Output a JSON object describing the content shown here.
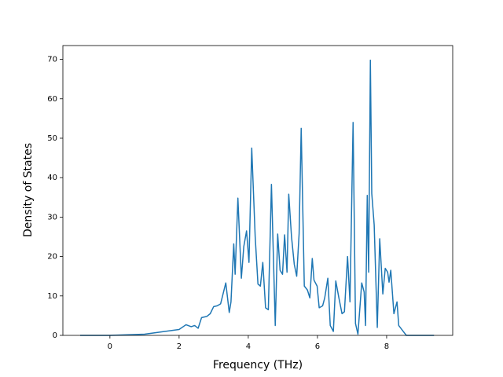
{
  "chart_data": {
    "type": "line",
    "x_label": "Frequency (THz)",
    "y_label": "Density of States",
    "color": "#1f77b4",
    "x": [
      -0.86,
      0,
      1.0,
      2.0,
      2.2,
      2.35,
      2.45,
      2.55,
      2.65,
      2.8,
      2.9,
      3.0,
      3.1,
      3.2,
      3.35,
      3.45,
      3.5,
      3.58,
      3.62,
      3.7,
      3.8,
      3.87,
      3.95,
      4.02,
      4.1,
      4.2,
      4.28,
      4.35,
      4.42,
      4.5,
      4.58,
      4.67,
      4.78,
      4.85,
      4.92,
      4.99,
      5.05,
      5.12,
      5.17,
      5.25,
      5.33,
      5.4,
      5.47,
      5.53,
      5.62,
      5.71,
      5.78,
      5.85,
      5.9,
      5.99,
      6.05,
      6.15,
      6.21,
      6.3,
      6.37,
      6.46,
      6.53,
      6.62,
      6.71,
      6.78,
      6.87,
      6.94,
      7.03,
      7.1,
      7.17,
      7.28,
      7.35,
      7.39,
      7.44,
      7.48,
      7.53,
      7.57,
      7.64,
      7.73,
      7.8,
      7.89,
      7.96,
      8.03,
      8.07,
      8.12,
      8.21,
      8.3,
      8.35,
      8.48,
      8.57,
      9.37
    ],
    "values": [
      0,
      0,
      0.3,
      1.5,
      2.7,
      2.2,
      2.5,
      1.8,
      4.5,
      4.8,
      5.5,
      7.3,
      7.5,
      8.0,
      13.3,
      5.8,
      8.5,
      23.2,
      15.5,
      34.8,
      14.5,
      22.5,
      26.5,
      18.5,
      47.5,
      25,
      13,
      12.5,
      18.5,
      7,
      6.5,
      38.3,
      2.5,
      25.7,
      16.5,
      15.5,
      25.5,
      16,
      35.8,
      25,
      18,
      15,
      25.8,
      52.5,
      12.5,
      11.5,
      9.5,
      19.5,
      14,
      12.5,
      7,
      7.5,
      9.5,
      14.5,
      2.5,
      1,
      13.8,
      9.5,
      5.5,
      6,
      20,
      8.5,
      54,
      3,
      0.3,
      13.3,
      11,
      2.5,
      35.5,
      16,
      69.8,
      36,
      28,
      2,
      24.5,
      10.5,
      17,
      16,
      13.5,
      16.5,
      5.5,
      8.5,
      2.5,
      1,
      0,
      0
    ],
    "xlim": [
      -1.36,
      9.91
    ],
    "ylim": [
      0,
      73.5
    ],
    "xticks": [
      0,
      2,
      4,
      6,
      8
    ],
    "yticks": [
      0,
      10,
      20,
      30,
      40,
      50,
      60,
      70
    ]
  }
}
